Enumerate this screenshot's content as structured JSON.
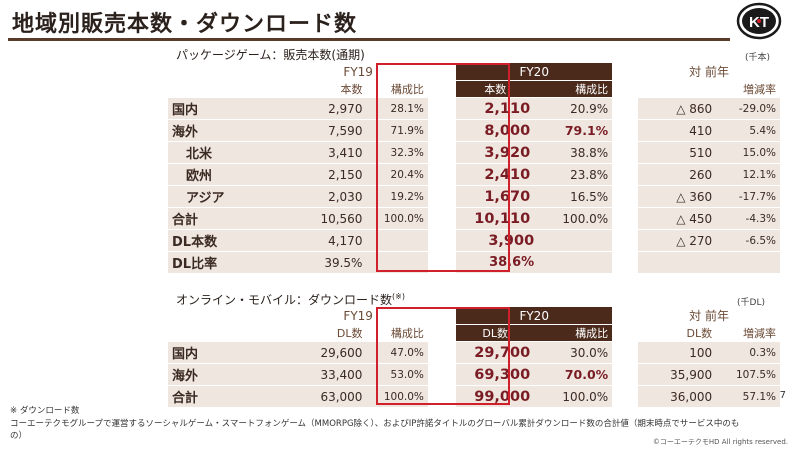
{
  "title": "地域別販売本数・ダウンロード数",
  "logo_text": "KT",
  "package": {
    "section_title": "パッケージゲーム：販売本数(通期)",
    "unit": "(千本)",
    "headers": {
      "fy19": "FY19",
      "fy20": "FY20",
      "yoy": "対 前年",
      "units": "本数",
      "share": "構成比",
      "share20": "構成比",
      "units20": "本数",
      "growth": "増減率"
    },
    "rows": [
      {
        "label": "国内",
        "fy19": "2,970",
        "fy19p": "28.1%",
        "fy20": "2,110",
        "fy20p": "20.9%",
        "diff": "△ 860",
        "rate": "-29.0%"
      },
      {
        "label": "海外",
        "fy19": "7,590",
        "fy19p": "71.9%",
        "fy20": "8,000",
        "fy20p": "79.1%",
        "diff": "410",
        "rate": "5.4%"
      },
      {
        "label": "北米",
        "fy19": "3,410",
        "fy19p": "32.3%",
        "fy20": "3,920",
        "fy20p": "38.8%",
        "diff": "510",
        "rate": "15.0%"
      },
      {
        "label": "欧州",
        "fy19": "2,150",
        "fy19p": "20.4%",
        "fy20": "2,410",
        "fy20p": "23.8%",
        "diff": "260",
        "rate": "12.1%"
      },
      {
        "label": "アジア",
        "fy19": "2,030",
        "fy19p": "19.2%",
        "fy20": "1,670",
        "fy20p": "16.5%",
        "diff": "△ 360",
        "rate": "-17.7%"
      },
      {
        "label": "合計",
        "fy19": "10,560",
        "fy19p": "100.0%",
        "fy20": "10,110",
        "fy20p": "100.0%",
        "diff": "△ 450",
        "rate": "-4.3%"
      },
      {
        "label": "DL本数",
        "fy19": "4,170",
        "fy19p": "",
        "fy20": "3,900",
        "fy20p": "",
        "diff": "△ 270",
        "rate": "-6.5%"
      },
      {
        "label": "DL比率",
        "fy19": "39.5%",
        "fy19p": "",
        "fy20": "38.6%",
        "fy20p": "",
        "diff": "",
        "rate": ""
      }
    ]
  },
  "online": {
    "section_title": "オンライン・モバイル：ダウンロード数",
    "section_note": "(※)",
    "unit": "(千DL)",
    "headers": {
      "fy19": "FY19",
      "fy20": "FY20",
      "yoy": "対 前年",
      "dl": "DL数",
      "share": "構成比",
      "dl20": "DL数",
      "share20": "構成比",
      "dl_yoy": "DL数",
      "growth": "増減率"
    },
    "rows": [
      {
        "label": "国内",
        "fy19": "29,600",
        "fy19p": "47.0%",
        "fy20": "29,700",
        "fy20p": "30.0%",
        "diff": "100",
        "rate": "0.3%"
      },
      {
        "label": "海外",
        "fy19": "33,400",
        "fy19p": "53.0%",
        "fy20": "69,300",
        "fy20p": "70.0%",
        "diff": "35,900",
        "rate": "107.5%"
      },
      {
        "label": "合計",
        "fy19": "63,000",
        "fy19p": "100.0%",
        "fy20": "99,000",
        "fy20p": "100.0%",
        "diff": "36,000",
        "rate": "57.1%"
      }
    ]
  },
  "footnote": {
    "mark": "※ ダウンロード数",
    "text": "コーエーテクモグループで運営するソーシャルゲーム・スマートフォンゲーム（MMORPG除く）、およびIP許諾タイトルのグローバル累計ダウンロード数の合計値（期末時点でサービス中のもの）"
  },
  "page_number": "7",
  "copyright": "©コーエーテクモHD All rights reserved."
}
